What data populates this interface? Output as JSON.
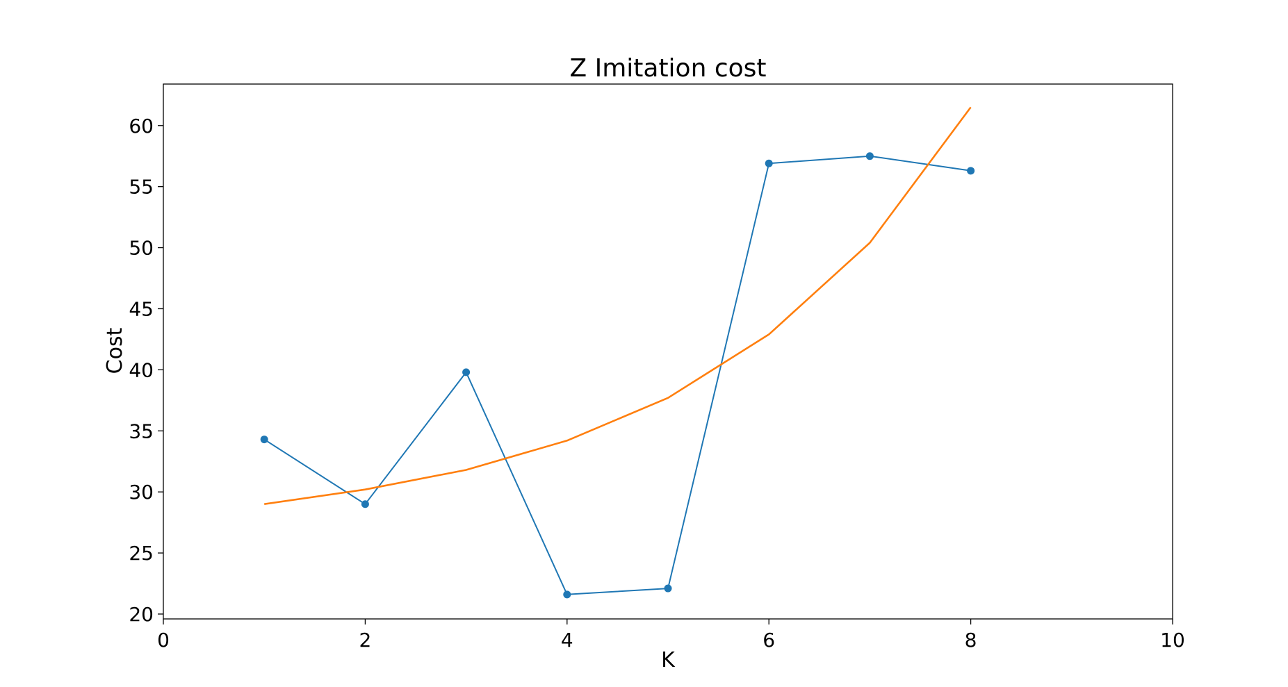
{
  "chart_data": {
    "type": "line",
    "title": "Z Imitation cost",
    "xlabel": "K",
    "ylabel": "Cost",
    "xlim": [
      0,
      10
    ],
    "ylim": [
      19.6,
      63.4
    ],
    "xticks": [
      "0",
      "2",
      "4",
      "6",
      "8",
      "10"
    ],
    "xtick_values": [
      0,
      2,
      4,
      6,
      8,
      10
    ],
    "yticks": [
      "20",
      "25",
      "30",
      "35",
      "40",
      "45",
      "50",
      "55",
      "60"
    ],
    "ytick_values": [
      20,
      25,
      30,
      35,
      40,
      45,
      50,
      55,
      60
    ],
    "grid": false,
    "legend": "none",
    "series": [
      {
        "x": [
          1,
          2,
          3,
          4,
          5,
          6,
          7,
          8
        ],
        "values": [
          34.3,
          29.0,
          39.8,
          21.6,
          22.1,
          56.9,
          57.5,
          56.3
        ],
        "color": "#1f77b4",
        "markers": true
      },
      {
        "x": [
          1,
          2,
          3,
          4,
          5,
          6,
          7,
          8
        ],
        "values": [
          29.0,
          30.2,
          31.8,
          34.2,
          37.7,
          42.9,
          50.4,
          61.5
        ],
        "color": "#ff7f0e",
        "markers": false
      }
    ]
  }
}
